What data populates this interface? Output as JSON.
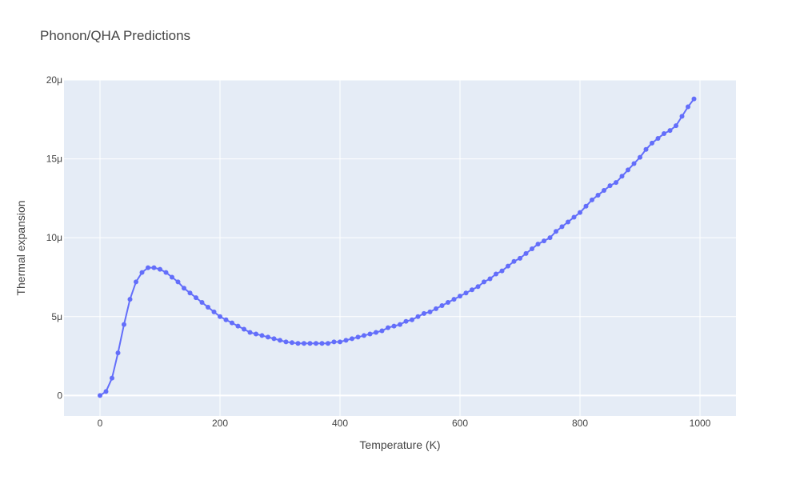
{
  "chart_data": {
    "type": "line",
    "title": "Phonon/QHA Predictions",
    "xlabel": "Temperature (K)",
    "ylabel": "Thermal expansion",
    "xlim": [
      -60,
      1060
    ],
    "ylim": [
      -1.3e-06,
      2e-05
    ],
    "x_ticks": [
      0,
      200,
      400,
      600,
      800,
      1000
    ],
    "x_tick_labels": [
      "0",
      "200",
      "400",
      "600",
      "800",
      "1000"
    ],
    "y_ticks": [
      0,
      5e-06,
      1e-05,
      1.5e-05,
      2e-05
    ],
    "y_tick_labels": [
      "0",
      "5μ",
      "10μ",
      "15μ",
      "20μ"
    ],
    "grid": true,
    "colors": {
      "series": "#636efa",
      "plot_background": "#e5ecf6",
      "grid": "#ffffff"
    },
    "series": [
      {
        "x": [
          0,
          10,
          20,
          30,
          40,
          50,
          60,
          70,
          80,
          90,
          100,
          110,
          120,
          130,
          140,
          150,
          160,
          170,
          180,
          190,
          200,
          210,
          220,
          230,
          240,
          250,
          260,
          270,
          280,
          290,
          300,
          310,
          320,
          330,
          340,
          350,
          360,
          370,
          380,
          390,
          400,
          410,
          420,
          430,
          440,
          450,
          460,
          470,
          480,
          490,
          500,
          510,
          520,
          530,
          540,
          550,
          560,
          570,
          580,
          590,
          600,
          610,
          620,
          630,
          640,
          650,
          660,
          670,
          680,
          690,
          700,
          710,
          720,
          730,
          740,
          750,
          760,
          770,
          780,
          790,
          800,
          810,
          820,
          830,
          840,
          850,
          860,
          870,
          880,
          890,
          900,
          910,
          920,
          930,
          940,
          950,
          960,
          970,
          980,
          990
        ],
        "y": [
          0,
          2.5e-07,
          1.1e-06,
          2.7e-06,
          4.5e-06,
          6.1e-06,
          7.2e-06,
          7.8e-06,
          8.1e-06,
          8.1e-06,
          8e-06,
          7.8e-06,
          7.5e-06,
          7.2e-06,
          6.8e-06,
          6.5e-06,
          6.2e-06,
          5.9e-06,
          5.6e-06,
          5.3e-06,
          5e-06,
          4.8e-06,
          4.6e-06,
          4.4e-06,
          4.2e-06,
          4e-06,
          3.9e-06,
          3.8e-06,
          3.7e-06,
          3.6e-06,
          3.5e-06,
          3.4e-06,
          3.35e-06,
          3.3e-06,
          3.3e-06,
          3.3e-06,
          3.3e-06,
          3.3e-06,
          3.3e-06,
          3.4e-06,
          3.4e-06,
          3.5e-06,
          3.6e-06,
          3.7e-06,
          3.8e-06,
          3.9e-06,
          4e-06,
          4.1e-06,
          4.3e-06,
          4.4e-06,
          4.5e-06,
          4.7e-06,
          4.8e-06,
          5e-06,
          5.2e-06,
          5.3e-06,
          5.5e-06,
          5.7e-06,
          5.9e-06,
          6.1e-06,
          6.3e-06,
          6.5e-06,
          6.7e-06,
          6.9e-06,
          7.2e-06,
          7.4e-06,
          7.7e-06,
          7.9e-06,
          8.2e-06,
          8.5e-06,
          8.7e-06,
          9e-06,
          9.3e-06,
          9.6e-06,
          9.8e-06,
          1e-05,
          1.04e-05,
          1.07e-05,
          1.1e-05,
          1.13e-05,
          1.16e-05,
          1.2e-05,
          1.24e-05,
          1.27e-05,
          1.3e-05,
          1.33e-05,
          1.35e-05,
          1.39e-05,
          1.43e-05,
          1.47e-05,
          1.51e-05,
          1.56e-05,
          1.6e-05,
          1.63e-05,
          1.66e-05,
          1.68e-05,
          1.71e-05,
          1.77e-05,
          1.83e-05,
          1.88e-05
        ]
      }
    ]
  }
}
